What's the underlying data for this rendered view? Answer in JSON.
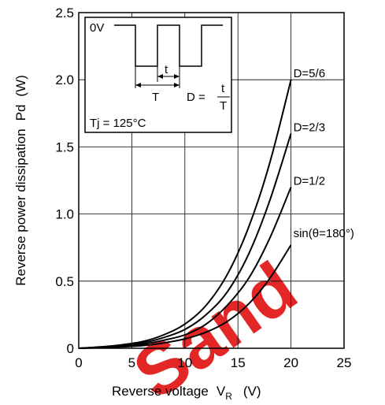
{
  "chart_data": {
    "type": "line",
    "xlabel": "Reverse voltage",
    "xlabel_symbol": "V",
    "xlabel_subscript": "R",
    "xlabel_unit": "(V)",
    "ylabel": "Reverse power dissipation",
    "ylabel_symbol": "Pd",
    "ylabel_unit": "(W)",
    "xlim": [
      0,
      25
    ],
    "ylim": [
      0,
      2.5
    ],
    "x_ticks": [
      "0",
      "5",
      "10",
      "15",
      "20",
      "25"
    ],
    "y_ticks": [
      "0",
      "0.5",
      "1.0",
      "1.5",
      "2.0",
      "2.5"
    ],
    "grid": true,
    "series": [
      {
        "name": "D=5/6",
        "x": [
          0,
          2,
          4,
          6,
          8,
          10,
          12,
          14,
          16,
          18,
          20
        ],
        "y": [
          0,
          0.01,
          0.025,
          0.05,
          0.1,
          0.18,
          0.32,
          0.55,
          0.9,
          1.38,
          2.0
        ]
      },
      {
        "name": "D=2/3",
        "x": [
          0,
          2,
          4,
          6,
          8,
          10,
          12,
          14,
          16,
          18,
          20
        ],
        "y": [
          0,
          0.008,
          0.02,
          0.04,
          0.08,
          0.14,
          0.25,
          0.42,
          0.7,
          1.1,
          1.6
        ]
      },
      {
        "name": "D=1/2",
        "x": [
          0,
          2,
          4,
          6,
          8,
          10,
          12,
          14,
          16,
          18,
          20
        ],
        "y": [
          0,
          0.006,
          0.015,
          0.03,
          0.06,
          0.1,
          0.18,
          0.32,
          0.52,
          0.82,
          1.2
        ]
      },
      {
        "name": "sin(θ=180°)",
        "x": [
          0,
          2,
          4,
          6,
          8,
          10,
          12,
          14,
          16,
          18,
          20
        ],
        "y": [
          0,
          0.004,
          0.01,
          0.02,
          0.04,
          0.07,
          0.12,
          0.2,
          0.33,
          0.52,
          0.77
        ]
      }
    ],
    "inset": {
      "zero_label": "0V",
      "t_label": "t",
      "T_label": "T",
      "duty_label": "D =",
      "duty_numerator": "t",
      "duty_denominator": "T",
      "condition": "Tj = 125°C"
    },
    "watermark": "Sand"
  }
}
